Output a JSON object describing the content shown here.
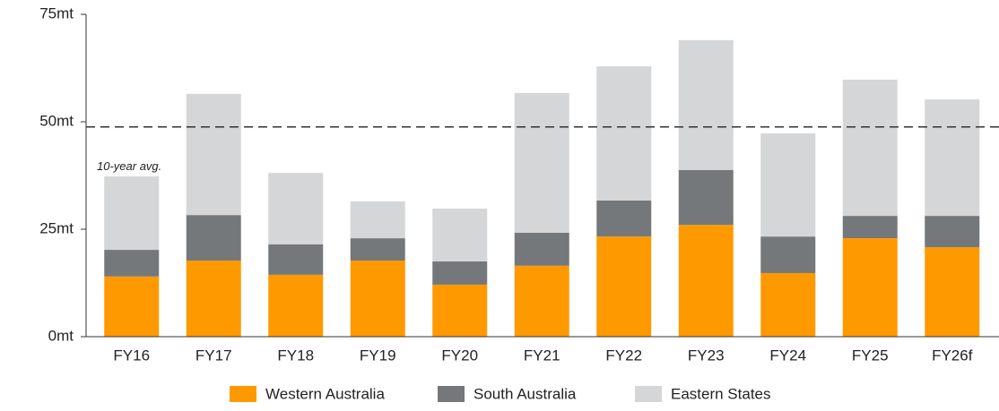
{
  "chart_data": {
    "type": "stacked_bar",
    "categories": [
      "FY16",
      "FY17",
      "FY18",
      "FY19",
      "FY20",
      "FY21",
      "FY22",
      "FY23",
      "FY24",
      "FY25",
      "FY26f"
    ],
    "series": [
      {
        "name": "Western Australia",
        "color": "#ff9900",
        "values": [
          14.0,
          17.7,
          14.4,
          17.7,
          12.1,
          16.5,
          23.3,
          26.0,
          14.8,
          22.9,
          20.8
        ]
      },
      {
        "name": "South Australia",
        "color": "#75787b",
        "values": [
          6.2,
          10.6,
          7.1,
          5.2,
          5.4,
          7.7,
          8.4,
          12.8,
          8.5,
          5.2,
          7.3
        ]
      },
      {
        "name": "Eastern States",
        "color": "#d5d6d8",
        "values": [
          17.1,
          28.2,
          16.6,
          8.6,
          12.3,
          32.5,
          31.2,
          30.2,
          24.0,
          31.7,
          27.1
        ]
      }
    ],
    "ylim": [
      0,
      75
    ],
    "yticks": [
      {
        "value": 0,
        "label": "0mt"
      },
      {
        "value": 25,
        "label": "25mt"
      },
      {
        "value": 50,
        "label": "50mt"
      },
      {
        "value": 75,
        "label": "75mt"
      }
    ],
    "reference_line": {
      "value": 48.8,
      "label": "10-year avg."
    },
    "legend": "bottom"
  }
}
